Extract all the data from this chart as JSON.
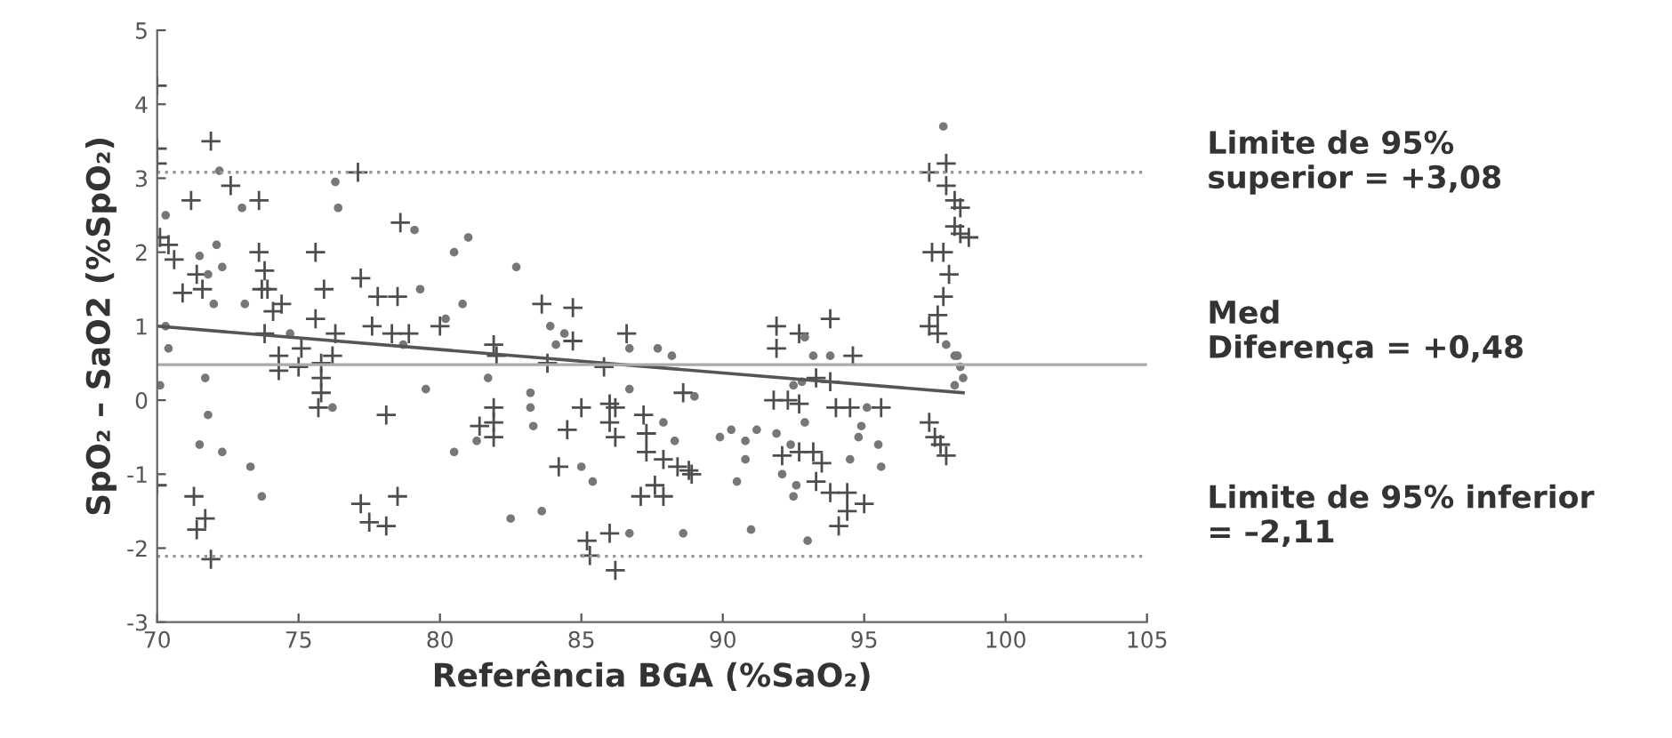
{
  "chart_data": {
    "type": "scatter",
    "xlabel": "Referência BGA (%SaO₂)",
    "ylabel": "SpO₂ – SaO2 (%SpO₂)",
    "xlim": [
      70,
      105
    ],
    "xticks": [
      70,
      75,
      80,
      85,
      90,
      95,
      100,
      105
    ],
    "ylim": [
      -3,
      5
    ],
    "yticks": [
      -3,
      -2,
      -1,
      0,
      1,
      2,
      3,
      4,
      5
    ],
    "grid": false,
    "legend": false,
    "series": [
      {
        "marker": "cross",
        "color": "#4d4d4d",
        "x": [
          70,
          70,
          70,
          70.1,
          70.4,
          70.6,
          70,
          71.3,
          71.4,
          71.7,
          71.9,
          71.9,
          71.2,
          72.6,
          73.6,
          70.9,
          71.4,
          71.6,
          73.6,
          73.8,
          73.7,
          73.9,
          74.1,
          74.4,
          73.8,
          74.3,
          74.3,
          75,
          75.1,
          75.6,
          75.6,
          75.9,
          75.8,
          75.8,
          75.8,
          75.7,
          76.2,
          76.3,
          77.2,
          77.8,
          78.5,
          77.6,
          78.1,
          77.2,
          77.5,
          78.1,
          78.5,
          78.6,
          77.1,
          78.3,
          78.9,
          80,
          81.9,
          82,
          81.9,
          81.9,
          81.9,
          81.4,
          83.6,
          84.7,
          84.7,
          83.8,
          85,
          84.5,
          84.2,
          85.3,
          85.2,
          86,
          86.2,
          86.6,
          86,
          86.2,
          86,
          86.2,
          87.2,
          87.3,
          87.3,
          87.1,
          87.6,
          87.9,
          87.9,
          88.4,
          88.9,
          88.6,
          85.8,
          91.9,
          91.9,
          93.8,
          92.7,
          91.8,
          92.3,
          92.7,
          92.7,
          92.1,
          93.2,
          93.5,
          93.3,
          93.8,
          94.4,
          94.4,
          95,
          94.1,
          88.8,
          93.8,
          94.6,
          94.5,
          95.6,
          94,
          93.3,
          97.3,
          97.9,
          97.9,
          98.2,
          98.4,
          98.2,
          98.7,
          98.4,
          97.4,
          97.8,
          98,
          97.8,
          97.6,
          97.3,
          97.6,
          97.3,
          97.5,
          97.7,
          97.9
        ],
        "values": [
          4.25,
          3.4,
          3.2,
          2.2,
          2.1,
          1.9,
          -1.15,
          -1.3,
          -1.75,
          -1.6,
          -2.15,
          3.5,
          2.7,
          2.9,
          2.7,
          1.45,
          1.7,
          1.5,
          2.0,
          1.75,
          1.5,
          1.5,
          1.2,
          1.3,
          0.9,
          0.6,
          0.4,
          0.45,
          0.7,
          2.0,
          1.1,
          1.5,
          0.5,
          0.3,
          0.1,
          -0.1,
          0.6,
          0.9,
          1.65,
          1.4,
          1.4,
          1.0,
          -0.2,
          -1.4,
          -1.65,
          -1.7,
          -1.3,
          2.4,
          3.08,
          0.9,
          0.9,
          1.0,
          0.75,
          0.6,
          -0.1,
          -0.3,
          -0.5,
          -0.35,
          1.3,
          1.25,
          0.8,
          0.5,
          -0.1,
          -0.4,
          -0.9,
          -2.1,
          -1.9,
          -1.8,
          -2.3,
          0.9,
          -0.05,
          -0.1,
          -0.3,
          -0.5,
          -0.2,
          -0.45,
          -0.7,
          -1.3,
          -1.15,
          -1.3,
          -0.8,
          -0.9,
          -1.0,
          0.1,
          0.45,
          1.0,
          0.7,
          1.1,
          0.9,
          0.0,
          0,
          -0.05,
          -0.7,
          -0.75,
          -0.7,
          -0.85,
          -1.1,
          -1.25,
          -1.25,
          -1.5,
          -1.4,
          -1.7,
          -0.95,
          0.25,
          0.6,
          -0.1,
          -0.1,
          -0.1,
          0.3,
          3.08,
          3.2,
          2.9,
          2.7,
          2.6,
          2.35,
          2.2,
          2.25,
          2.0,
          2.0,
          1.7,
          1.4,
          1.15,
          1.0,
          0.9,
          -0.3,
          -0.5,
          -0.6,
          -0.75
        ]
      },
      {
        "marker": "circle",
        "color": "#777777",
        "x": [
          70.3,
          70.4,
          70.1,
          70.3,
          72.0,
          73.1,
          71.7,
          71.8,
          71.5,
          72.3,
          73.3,
          73.7,
          73.0,
          76.3,
          76.4,
          76.2,
          74.7,
          78.7,
          72.1,
          71.8,
          72.3,
          71.5,
          72.2,
          79.1,
          80.5,
          81,
          79.3,
          80.8,
          80.2,
          79.5,
          81.7,
          80.5,
          81.3,
          83.2,
          83.2,
          83.3,
          82.7,
          82.5,
          83.6,
          83.9,
          84.1,
          84.4,
          85,
          85.4,
          86.7,
          86.7,
          87.7,
          86.7,
          87.9,
          88.3,
          88.6,
          89,
          88.2,
          97.8,
          97.9,
          98.2,
          98.4,
          98.5,
          98.2,
          98.3,
          92.9,
          93.2,
          92.5,
          92.9,
          92.4,
          91.9,
          90.8,
          90.3,
          89.9,
          91.2,
          90.8,
          90.5,
          92.1,
          92.6,
          92.5,
          93,
          91,
          94.8,
          95.5,
          94.9,
          95.6,
          94.5,
          95.1,
          93.8,
          92.8
        ],
        "values": [
          1.0,
          0.7,
          0.2,
          2.5,
          1.3,
          1.3,
          0.3,
          -0.2,
          -0.6,
          -0.7,
          -0.9,
          -1.3,
          2.6,
          2.95,
          2.6,
          -0.1,
          0.9,
          0.75,
          2.1,
          1.7,
          1.8,
          1.95,
          3.1,
          2.3,
          2.0,
          2.2,
          1.5,
          1.3,
          1.1,
          0.15,
          0.3,
          -0.7,
          -0.55,
          0.1,
          -0.1,
          -0.35,
          1.8,
          -1.6,
          -1.5,
          1.0,
          0.75,
          0.9,
          -0.9,
          -1.1,
          -1.8,
          0.7,
          0.7,
          0.15,
          -0.3,
          -0.55,
          -1.8,
          0.05,
          0.6,
          3.7,
          0.75,
          0.6,
          0.45,
          0.3,
          0.2,
          0.6,
          0.85,
          0.6,
          0.2,
          -0.3,
          -0.6,
          -0.45,
          -0.55,
          -0.4,
          -0.5,
          -0.4,
          -0.8,
          -1.1,
          -1.0,
          -1.15,
          -1.3,
          -1.9,
          -1.75,
          -0.5,
          -0.6,
          -0.35,
          -0.9,
          -0.8,
          -0.1,
          0.6,
          0.25
        ]
      },
      {
        "type": "line",
        "marker": "none",
        "line_style": "solid",
        "color": "#555555",
        "x": [
          70,
          98.5
        ],
        "values": [
          1.0,
          0.1
        ]
      }
    ],
    "ref_lines": [
      {
        "axis": "y",
        "value": 3.08,
        "color": "#999999",
        "line_style": "dotted"
      },
      {
        "axis": "y",
        "value": 0.48,
        "color": "#aaaaaa",
        "line_style": "solid"
      },
      {
        "axis": "y",
        "value": -2.11,
        "color": "#999999",
        "line_style": "dotted"
      }
    ],
    "annotations": [
      "Limite de 95%\nsuperior = +3,08",
      "Med\nDiferença = +0,48",
      "Limite de 95% inferior\n= –2,11"
    ]
  }
}
